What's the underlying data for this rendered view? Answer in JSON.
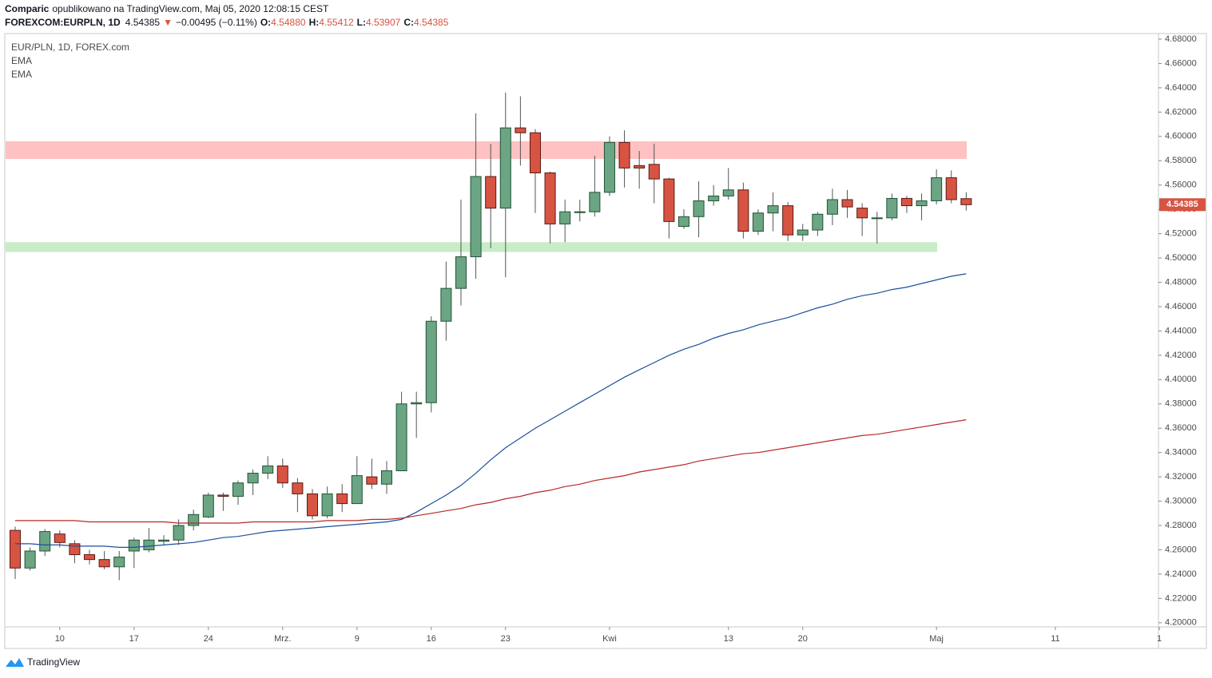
{
  "header": {
    "author": "Comparic",
    "published": "opublikowano na TradingView.com, Maj 05, 2020 12:08:15 CEST",
    "symbol": "FOREXCOM:EURPLN, 1D",
    "price": "4.54385",
    "arrow": "▼",
    "change": "−0.00495 (−0.11%)",
    "o_label": "O:",
    "o": "4.54880",
    "h_label": "H:",
    "h": "4.55412",
    "l_label": "L:",
    "l": "4.53907",
    "c_label": "C:",
    "c": "4.54385"
  },
  "legend": {
    "instrument": "EUR/PLN, 1D, FOREX.com"
  },
  "footer": {
    "brand": "TradingView"
  },
  "chart_data": {
    "type": "candlestick",
    "up_color": "#6ba583",
    "up_border": "#225437",
    "down_color": "#d75442",
    "down_border": "#5b1a13",
    "wick_color": "#555555",
    "grid": false,
    "xlim": [
      -0.7,
      76.94
    ],
    "xticks": [
      {
        "value": 3,
        "label": "10"
      },
      {
        "value": 8,
        "label": "17"
      },
      {
        "value": 13,
        "label": "24"
      },
      {
        "value": 18,
        "label": "Mrz."
      },
      {
        "value": 23,
        "label": "9"
      },
      {
        "value": 28,
        "label": "16"
      },
      {
        "value": 33,
        "label": "23"
      },
      {
        "value": 40,
        "label": "Kwi"
      },
      {
        "value": 48,
        "label": "13"
      },
      {
        "value": 53,
        "label": "20"
      },
      {
        "value": 62,
        "label": "Maj"
      },
      {
        "value": 70,
        "label": "11"
      },
      {
        "value": 77,
        "label": "1"
      }
    ],
    "ylim": [
      4.1966,
      4.6846
    ],
    "yticks": [
      {
        "value": 4.2,
        "label": "4.20000"
      },
      {
        "value": 4.22,
        "label": "4.22000"
      },
      {
        "value": 4.24,
        "label": "4.24000"
      },
      {
        "value": 4.26,
        "label": "4.26000"
      },
      {
        "value": 4.28,
        "label": "4.28000"
      },
      {
        "value": 4.3,
        "label": "4.30000"
      },
      {
        "value": 4.32,
        "label": "4.32000"
      },
      {
        "value": 4.34,
        "label": "4.34000"
      },
      {
        "value": 4.36,
        "label": "4.36000"
      },
      {
        "value": 4.38,
        "label": "4.38000"
      },
      {
        "value": 4.4,
        "label": "4.40000"
      },
      {
        "value": 4.42,
        "label": "4.42000"
      },
      {
        "value": 4.44,
        "label": "4.44000"
      },
      {
        "value": 4.46,
        "label": "4.46000"
      },
      {
        "value": 4.48,
        "label": "4.48000"
      },
      {
        "value": 4.5,
        "label": "4.50000"
      },
      {
        "value": 4.52,
        "label": "4.52000"
      },
      {
        "value": 4.54,
        "label": "4.54000"
      },
      {
        "value": 4.56,
        "label": "4.56000"
      },
      {
        "value": 4.58,
        "label": "4.58000"
      },
      {
        "value": 4.6,
        "label": "4.60000"
      },
      {
        "value": 4.62,
        "label": "4.62000"
      },
      {
        "value": 4.64,
        "label": "4.64000"
      },
      {
        "value": 4.66,
        "label": "4.66000"
      },
      {
        "value": 4.68,
        "label": "4.68000"
      }
    ],
    "last_price": 4.54385,
    "last_price_label": "4.54385",
    "zones": [
      {
        "from": 4.5815,
        "to": 4.596,
        "color": "#ffc1c1"
      },
      {
        "from": 4.505,
        "to": 4.513,
        "color": "#c8ecc8"
      }
    ],
    "open": [
      4.276,
      4.245,
      4.259,
      4.273,
      4.265,
      4.256,
      4.252,
      4.246,
      4.259,
      4.26,
      4.267,
      4.268,
      4.28,
      4.287,
      4.305,
      4.304,
      4.315,
      4.323,
      4.329,
      4.315,
      4.306,
      4.288,
      4.306,
      4.298,
      4.32,
      4.314,
      4.325,
      4.38,
      4.381,
      4.448,
      4.475,
      4.501,
      4.567,
      4.541,
      4.607,
      4.603,
      4.57,
      4.528,
      4.538,
      4.538,
      4.554,
      4.595,
      4.576,
      4.577,
      4.565,
      4.526,
      4.534,
      4.547,
      4.551,
      4.556,
      4.522,
      4.537,
      4.543,
      4.519,
      4.523,
      4.536,
      4.548,
      4.541,
      4.533,
      4.533,
      4.549,
      4.543,
      4.547,
      4.566,
      4.5488
    ],
    "high": [
      4.279,
      4.262,
      4.277,
      4.276,
      4.268,
      4.26,
      4.259,
      4.259,
      4.27,
      4.278,
      4.272,
      4.285,
      4.293,
      4.307,
      4.307,
      4.317,
      4.326,
      4.337,
      4.335,
      4.319,
      4.31,
      4.312,
      4.314,
      4.337,
      4.335,
      4.333,
      4.39,
      4.39,
      4.452,
      4.497,
      4.548,
      4.619,
      4.594,
      4.636,
      4.633,
      4.606,
      4.571,
      4.548,
      4.548,
      4.584,
      4.6,
      4.605,
      4.588,
      4.594,
      4.566,
      4.54,
      4.563,
      4.56,
      4.574,
      4.562,
      4.54,
      4.554,
      4.546,
      4.528,
      4.538,
      4.557,
      4.556,
      4.545,
      4.538,
      4.553,
      4.551,
      4.553,
      4.573,
      4.572,
      4.55412
    ],
    "low": [
      4.236,
      4.243,
      4.255,
      4.262,
      4.249,
      4.248,
      4.244,
      4.235,
      4.245,
      4.258,
      4.264,
      4.264,
      4.276,
      4.286,
      4.292,
      4.297,
      4.305,
      4.318,
      4.311,
      4.291,
      4.285,
      4.286,
      4.291,
      4.298,
      4.31,
      4.306,
      4.325,
      4.352,
      4.373,
      4.432,
      4.461,
      4.483,
      4.508,
      4.484,
      4.576,
      4.537,
      4.512,
      4.513,
      4.53,
      4.534,
      4.551,
      4.558,
      4.557,
      4.545,
      4.516,
      4.524,
      4.517,
      4.543,
      4.548,
      4.516,
      4.519,
      4.522,
      4.514,
      4.514,
      4.518,
      4.527,
      4.533,
      4.518,
      4.512,
      4.531,
      4.537,
      4.531,
      4.544,
      4.545,
      4.53907
    ],
    "close": [
      4.245,
      4.259,
      4.275,
      4.266,
      4.256,
      4.252,
      4.246,
      4.254,
      4.268,
      4.268,
      4.268,
      4.28,
      4.289,
      4.305,
      4.304,
      4.315,
      4.323,
      4.329,
      4.315,
      4.306,
      4.288,
      4.306,
      4.298,
      4.321,
      4.314,
      4.325,
      4.38,
      4.381,
      4.448,
      4.475,
      4.501,
      4.567,
      4.541,
      4.607,
      4.603,
      4.57,
      4.528,
      4.538,
      4.538,
      4.554,
      4.595,
      4.574,
      4.574,
      4.565,
      4.53,
      4.534,
      4.547,
      4.551,
      4.556,
      4.522,
      4.537,
      4.543,
      4.519,
      4.523,
      4.536,
      4.548,
      4.542,
      4.533,
      4.533,
      4.549,
      4.543,
      4.547,
      4.566,
      4.548,
      4.54385
    ],
    "series": [
      {
        "name": "EMA",
        "color": "#1c4f9c",
        "values": [
          4.265,
          4.265,
          4.264,
          4.264,
          4.263,
          4.263,
          4.263,
          4.262,
          4.262,
          4.263,
          4.264,
          4.265,
          4.266,
          4.268,
          4.27,
          4.271,
          4.273,
          4.275,
          4.276,
          4.277,
          4.278,
          4.279,
          4.28,
          4.281,
          4.282,
          4.283,
          4.285,
          4.291,
          4.298,
          4.305,
          4.313,
          4.323,
          4.334,
          4.344,
          4.352,
          4.36,
          4.367,
          4.374,
          4.381,
          4.388,
          4.395,
          4.402,
          4.408,
          4.414,
          4.42,
          4.425,
          4.429,
          4.434,
          4.438,
          4.441,
          4.445,
          4.448,
          4.451,
          4.455,
          4.459,
          4.462,
          4.466,
          4.469,
          4.471,
          4.474,
          4.476,
          4.479,
          4.482,
          4.485,
          4.487
        ]
      },
      {
        "name": "EMA",
        "color": "#b52a2a",
        "values": [
          4.284,
          4.284,
          4.284,
          4.284,
          4.284,
          4.283,
          4.283,
          4.283,
          4.283,
          4.283,
          4.283,
          4.282,
          4.282,
          4.282,
          4.282,
          4.282,
          4.283,
          4.283,
          4.283,
          4.283,
          4.283,
          4.284,
          4.284,
          4.284,
          4.285,
          4.285,
          4.286,
          4.288,
          4.29,
          4.292,
          4.294,
          4.297,
          4.299,
          4.302,
          4.304,
          4.307,
          4.309,
          4.312,
          4.314,
          4.317,
          4.319,
          4.321,
          4.324,
          4.326,
          4.328,
          4.33,
          4.333,
          4.335,
          4.337,
          4.339,
          4.34,
          4.342,
          4.344,
          4.346,
          4.348,
          4.35,
          4.352,
          4.354,
          4.355,
          4.357,
          4.359,
          4.361,
          4.363,
          4.365,
          4.367
        ]
      }
    ]
  }
}
